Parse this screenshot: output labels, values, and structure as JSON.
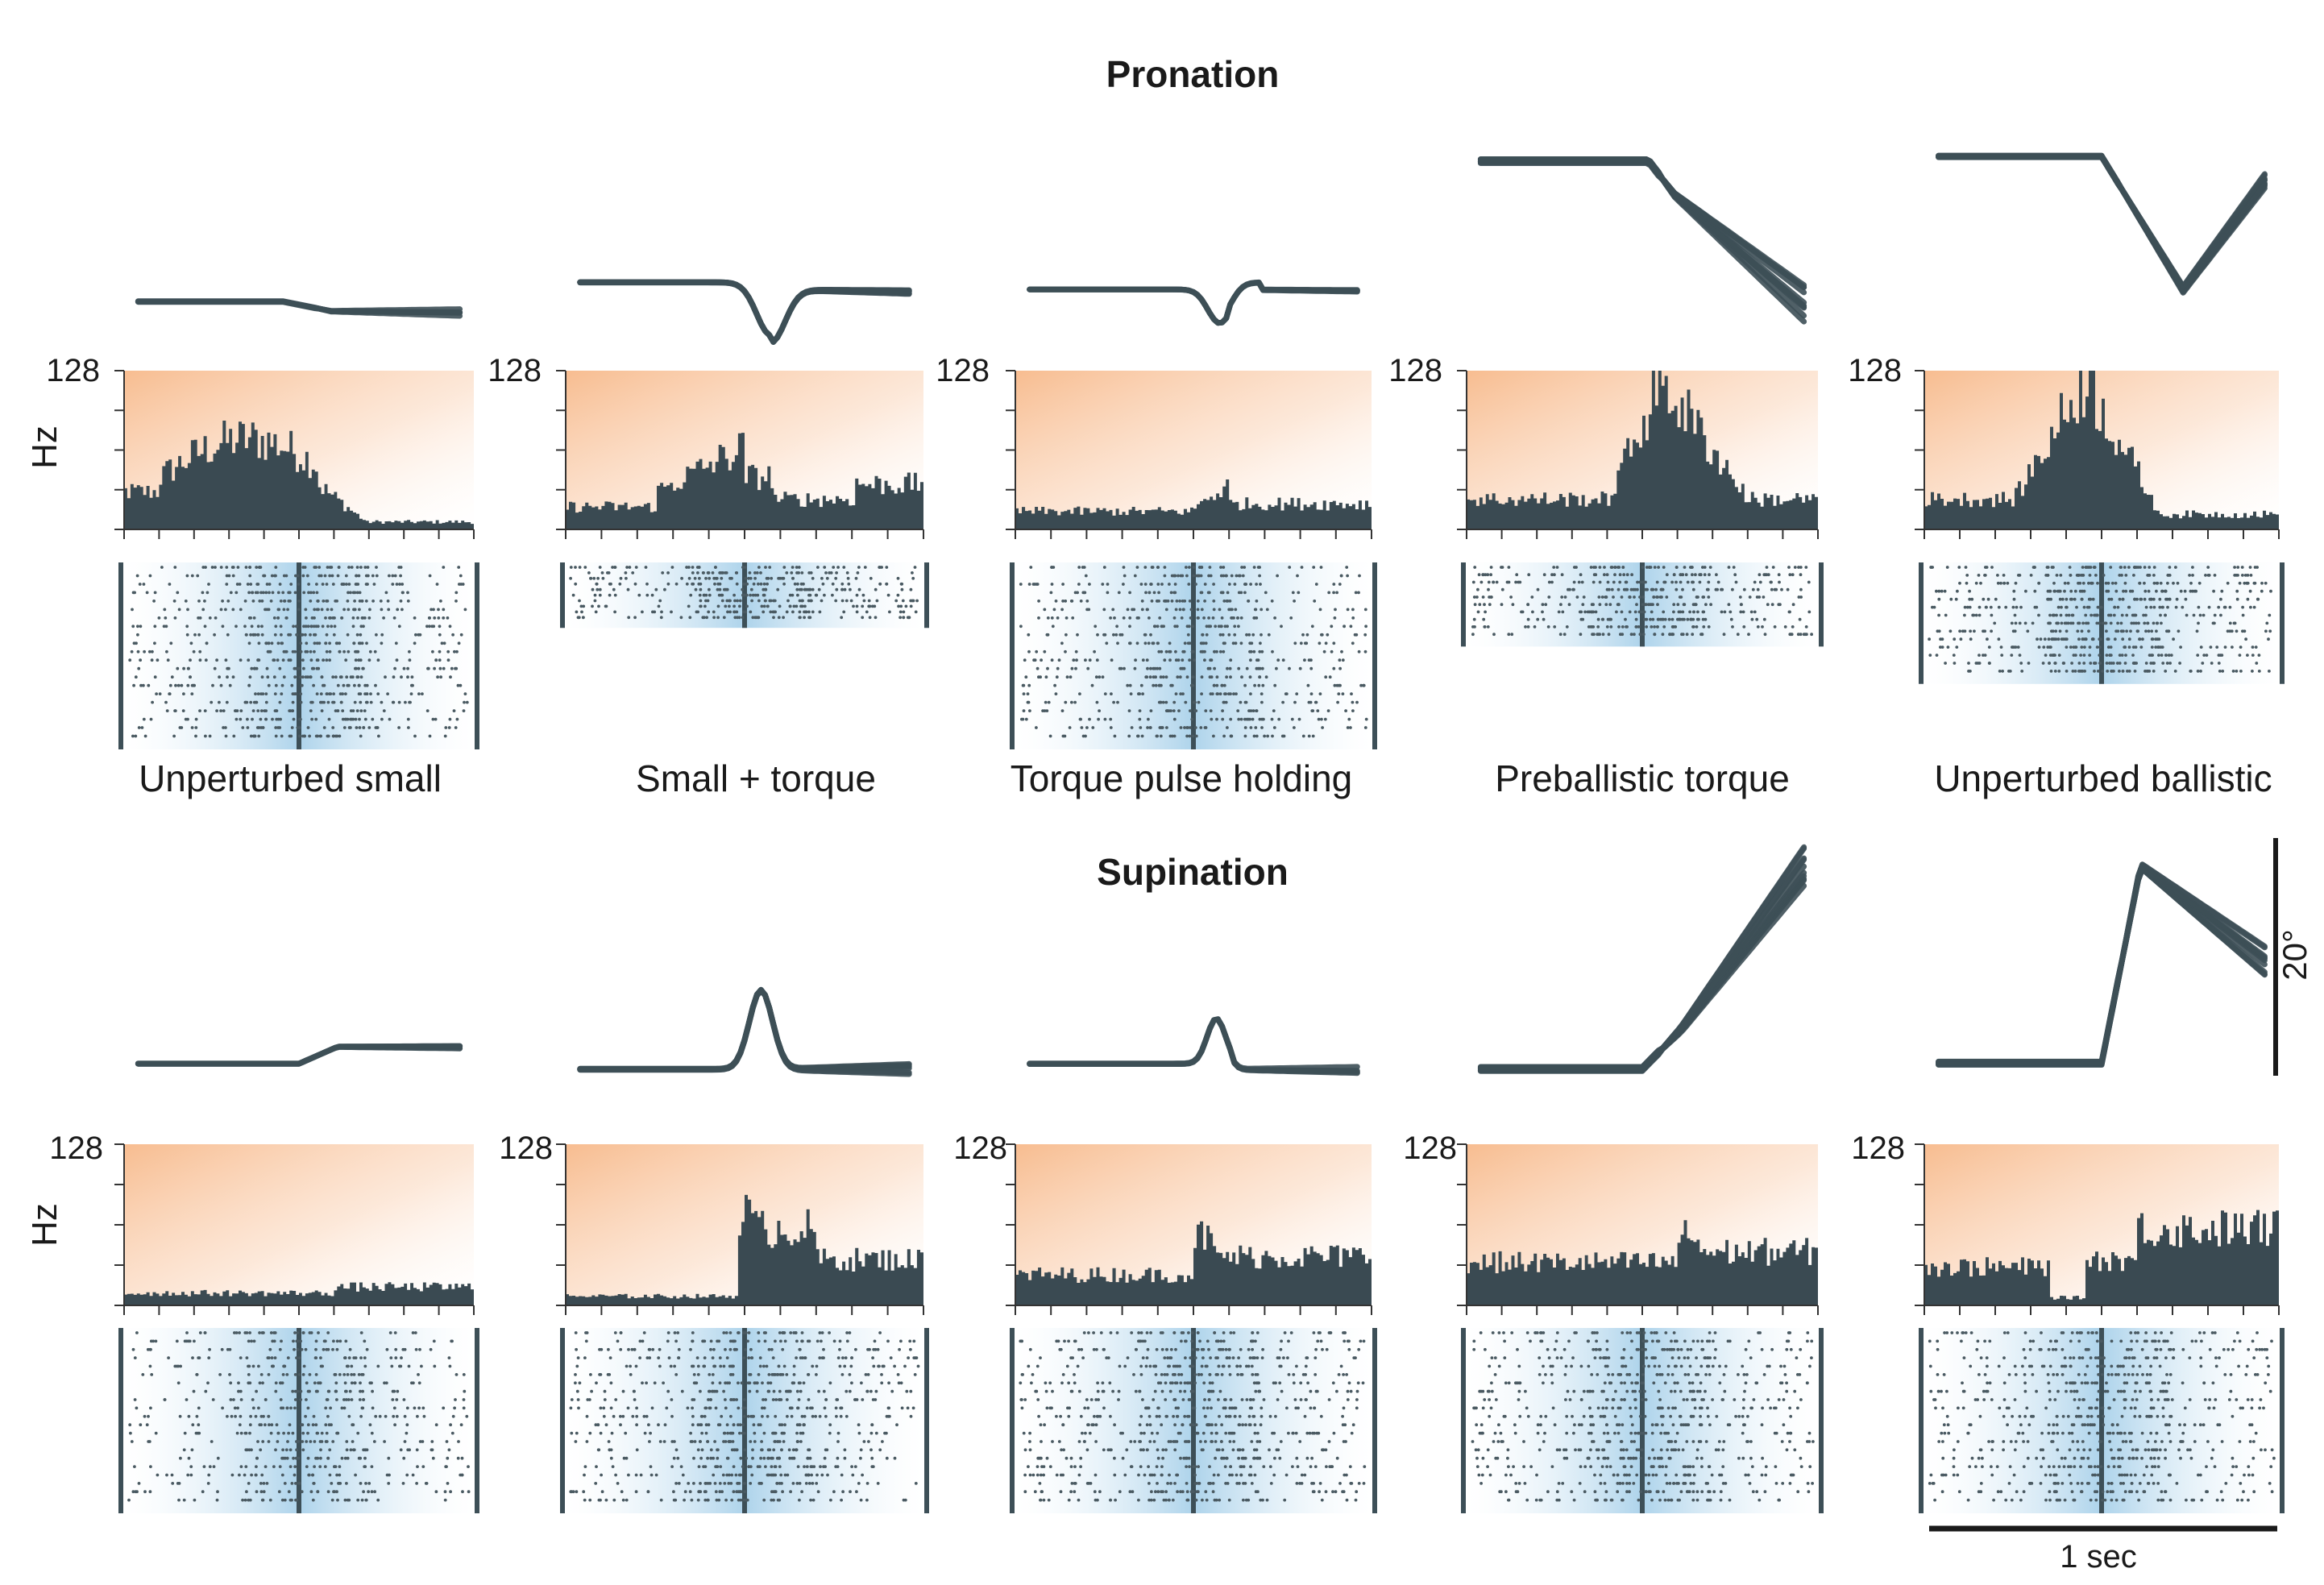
{
  "headings": {
    "pronation": "Pronation",
    "supination": "Supination"
  },
  "condition_labels": [
    "Unperturbed small",
    "Small + torque",
    "Torque pulse holding",
    "Preballistic torque",
    "Unperturbed ballistic"
  ],
  "axis": {
    "ymax_label": "128",
    "ylabel": "Hz"
  },
  "scale_bars": {
    "angle": "20°",
    "time": "1 sec"
  },
  "colors": {
    "ink": "#3d4f57",
    "hist_fill": "#3a4a52",
    "psth_bg": "#f7b98a",
    "raster_bg": "#a9d1ea",
    "raster_dot": "#4a5a62"
  }
}
